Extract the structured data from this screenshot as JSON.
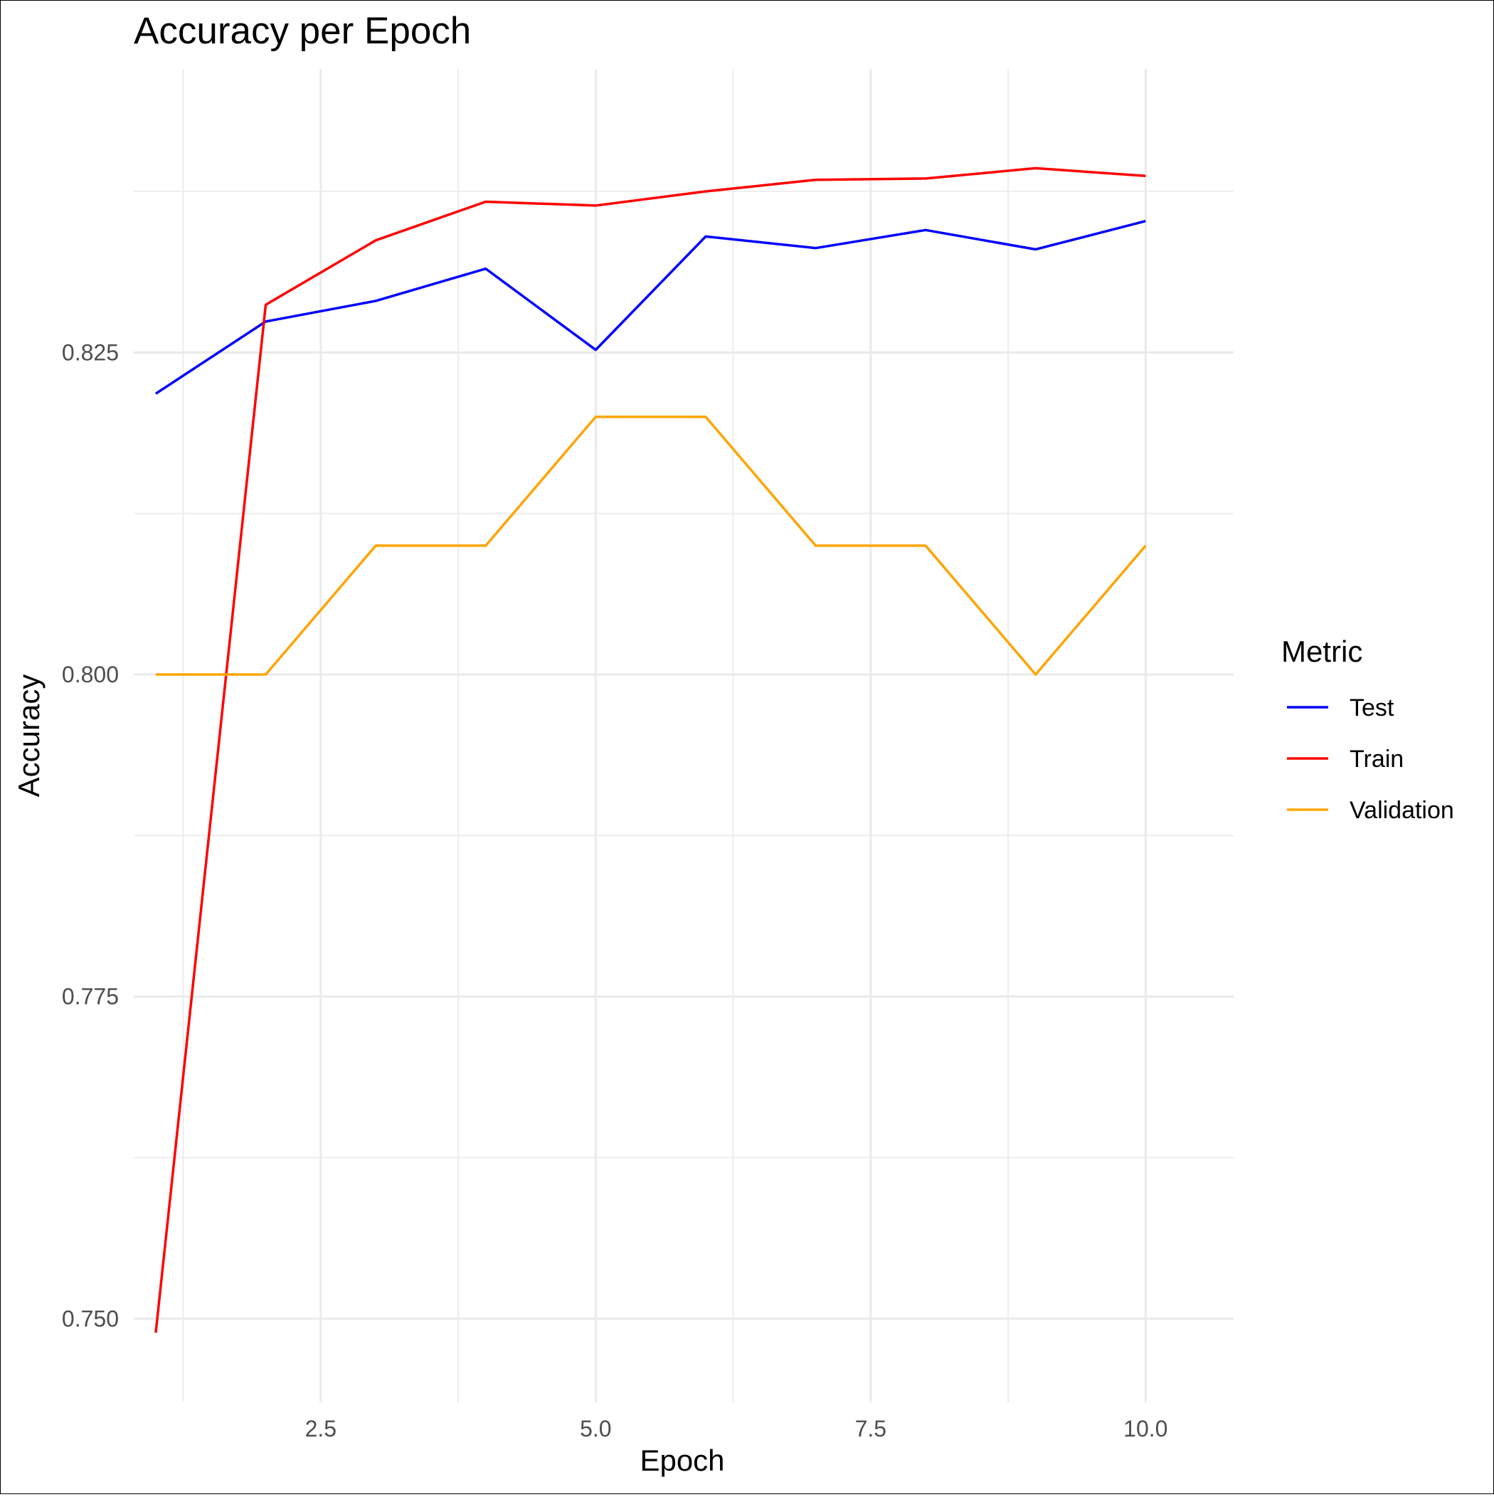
{
  "chart_data": {
    "type": "line",
    "title": "Accuracy per Epoch",
    "xlabel": "Epoch",
    "ylabel": "Accuracy",
    "xlim": [
      0.8,
      10.8
    ],
    "ylim": [
      0.7435,
      0.847
    ],
    "x_ticks": [
      2.5,
      5.0,
      7.5,
      10.0
    ],
    "x_tick_labels": [
      "2.5",
      "5.0",
      "7.5",
      "10.0"
    ],
    "y_ticks": [
      0.75,
      0.775,
      0.8,
      0.825
    ],
    "y_tick_labels": [
      "0.750",
      "0.775",
      "0.800",
      "0.825"
    ],
    "x_minor": [
      1.25,
      3.75,
      6.25,
      8.75
    ],
    "y_minor": [
      0.7625,
      0.7875,
      0.8125,
      0.8375
    ],
    "grid": true,
    "legend": {
      "title": "Metric",
      "position": "right"
    },
    "x": [
      1,
      2,
      3,
      4,
      5,
      6,
      7,
      8,
      9,
      10
    ],
    "series": [
      {
        "name": "Test",
        "color": "#0000ff",
        "values": [
          0.8218,
          0.8274,
          0.829,
          0.8315,
          0.8252,
          0.834,
          0.8331,
          0.8345,
          0.833,
          0.8352
        ]
      },
      {
        "name": "Train",
        "color": "#ff0000",
        "values": [
          0.7489,
          0.8287,
          0.8337,
          0.8367,
          0.8364,
          0.8375,
          0.8384,
          0.8385,
          0.8393,
          0.8387
        ]
      },
      {
        "name": "Validation",
        "color": "#ffa500",
        "values": [
          0.8,
          0.8,
          0.81,
          0.81,
          0.82,
          0.82,
          0.81,
          0.81,
          0.8,
          0.81
        ]
      }
    ]
  }
}
